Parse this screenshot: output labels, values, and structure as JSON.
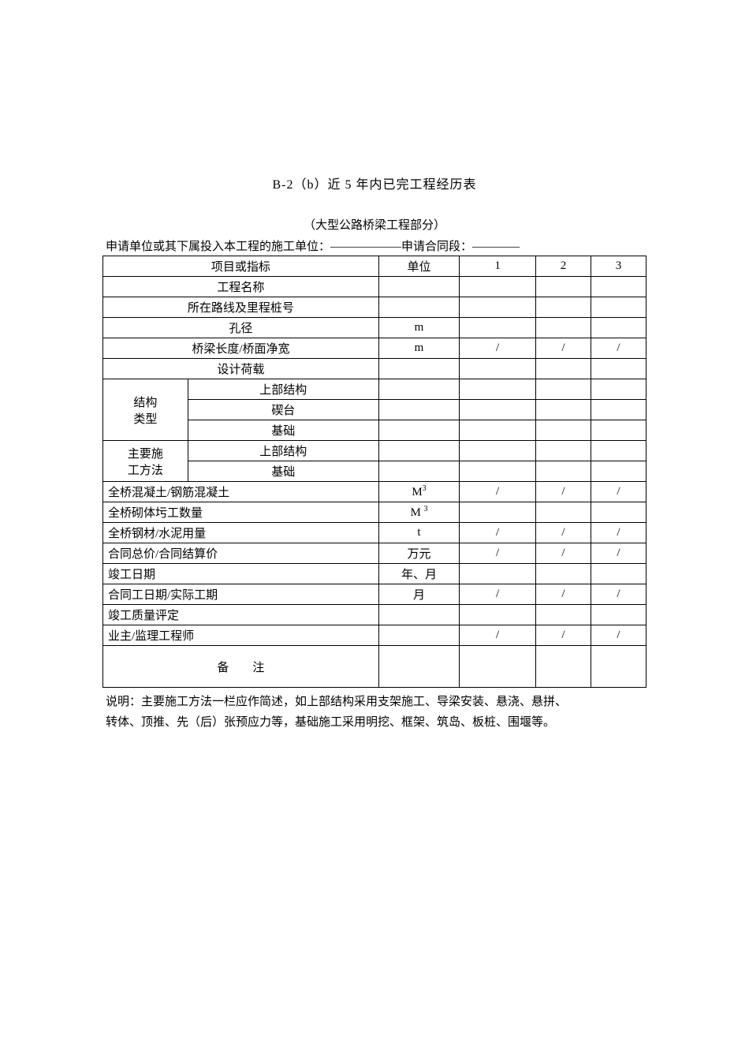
{
  "title": "B-2（b）近 5 年内已完工程经历表",
  "subtitle": "（大型公路桥梁工程部分）",
  "header_prefix": "申请单位或其下属投入本工程的施工单位：",
  "header_mid": "申请合同段：",
  "blank_line": "——————",
  "blank_line_short": "————",
  "cols": {
    "item": "项目或指标",
    "unit": "单位",
    "c1": "1",
    "c2": "2",
    "c3": "3"
  },
  "rows": {
    "project_name": "工程名称",
    "route_station": "所在路线及里程桩号",
    "aperture": "孔径",
    "bridge_len": "桥梁长度/桥面净宽",
    "design_load": "设计荷载",
    "struct_type_l1": "结构",
    "struct_type_l2": "类型",
    "struct_upper": "上部结构",
    "struct_pier": "碶台",
    "struct_found": "基础",
    "method_l1": "主要施",
    "method_l2": "工方法",
    "method_upper": "上部结构",
    "method_found": "基础",
    "concrete": "全桥混凝土/钢筋混凝土",
    "masonry": "全桥砌体圬工数量",
    "steel_cement": "全桥钢材/水泥用量",
    "contract_price": "合同总价/合同结算价",
    "completion_date": "竣工日期",
    "duration": "合同工日期/实际工期",
    "quality": "竣工质量评定",
    "owner": "业主/监理工程师",
    "remark": "备　　注"
  },
  "units": {
    "m": "m",
    "m3": "M",
    "m3_sup": "3",
    "m_sp": "M ",
    "t": "t",
    "wan": "万元",
    "ym": "年、月",
    "month": "月"
  },
  "slash": "/",
  "note_l1": "说明：主要施工方法一栏应作简述，如上部结构采用支架施工、导梁安装、悬浇、悬拼、",
  "note_l2": "转体、顶推、先（后）张预应力等，基础施工采用明挖、框架、筑岛、板桩、围堰等。"
}
